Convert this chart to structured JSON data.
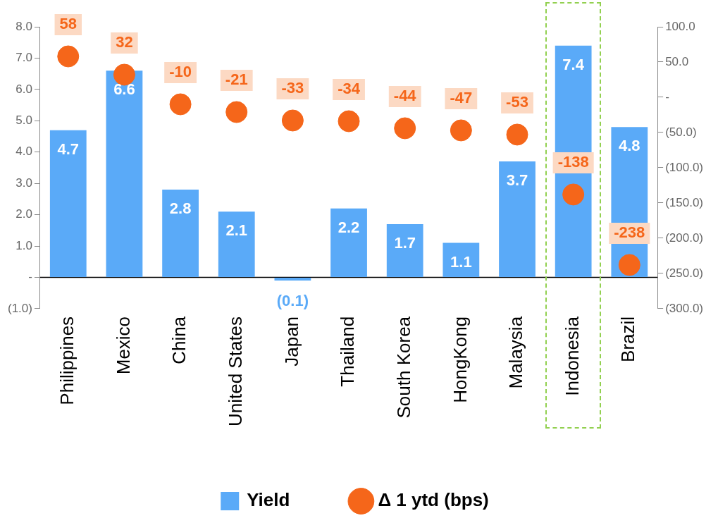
{
  "chart_data": {
    "type": "bar",
    "categories": [
      "Philippines",
      "Mexico",
      "China",
      "United States",
      "Japan",
      "Thailand",
      "South Korea",
      "HongKong",
      "Malaysia",
      "Indonesia",
      "Brazil"
    ],
    "series": [
      {
        "name": "Yield",
        "color": "#5aaaf8",
        "values": [
          4.7,
          6.6,
          2.8,
          2.1,
          -0.1,
          2.2,
          1.7,
          1.1,
          3.7,
          7.4,
          4.8
        ],
        "value_labels": [
          "4.7",
          "6.6",
          "2.8",
          "2.1",
          "(0.1)",
          "2.2",
          "1.7",
          "1.1",
          "3.7",
          "7.4",
          "4.8"
        ]
      },
      {
        "name": "Δ 1 ytd (bps)",
        "type": "scatter",
        "axis": "y2",
        "color": "#f5661a",
        "values": [
          58,
          32,
          -10,
          -21,
          -33,
          -34,
          -44,
          -47,
          -53,
          -138,
          -238
        ],
        "value_labels": [
          "58",
          "32",
          "-10",
          "-21",
          "-33",
          "-34",
          "-44",
          "-47",
          "-53",
          "-138",
          "-238"
        ]
      }
    ],
    "ylim": [
      -1,
      8
    ],
    "yticks": [
      {
        "value": -1,
        "label": "(1.0)"
      },
      {
        "value": 0,
        "label": "-"
      },
      {
        "value": 1,
        "label": "1.0"
      },
      {
        "value": 2,
        "label": "2.0"
      },
      {
        "value": 3,
        "label": "3.0"
      },
      {
        "value": 4,
        "label": "4.0"
      },
      {
        "value": 5,
        "label": "5.0"
      },
      {
        "value": 6,
        "label": "6.0"
      },
      {
        "value": 7,
        "label": "7.0"
      },
      {
        "value": 8,
        "label": "8.0"
      }
    ],
    "y2lim": [
      -300,
      100
    ],
    "y2ticks": [
      {
        "value": -300,
        "label": "(300.0)"
      },
      {
        "value": -250,
        "label": "(250.0)"
      },
      {
        "value": -200,
        "label": "(200.0)"
      },
      {
        "value": -150,
        "label": "(150.0)"
      },
      {
        "value": -100,
        "label": "(100.0)"
      },
      {
        "value": -50,
        "label": "(50.0)"
      },
      {
        "value": 0,
        "label": "-"
      },
      {
        "value": 50,
        "label": "50.0"
      },
      {
        "value": 100,
        "label": "100.0"
      }
    ],
    "marker": "circle",
    "legend": "bottom",
    "grid": false
  }
}
